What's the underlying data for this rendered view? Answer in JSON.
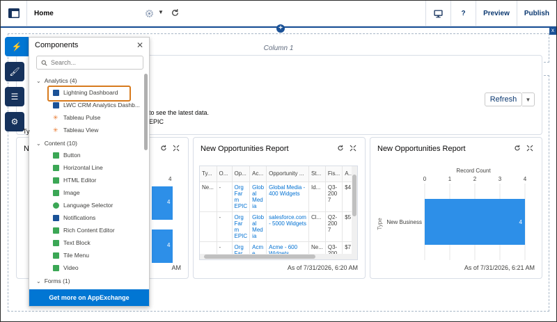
{
  "header": {
    "title": "Home",
    "preview_label": "Preview",
    "publish_label": "Publish"
  },
  "canvas": {
    "column_label": "Column 1",
    "refresh_label": "Refresh",
    "partial_text_1": "to see the latest data.",
    "partial_text_2": "EPIC",
    "partial_letter_1": "Ne",
    "partial_letter_2": "Ty"
  },
  "cards": [
    {
      "title": "New Opportunities Report",
      "footer": "As of 7/31/2026, 6:20 AM",
      "headers": [
        "Ty...",
        "O...",
        "Op...",
        "Ac...",
        "Opportunity ...",
        "St...",
        "Fis...",
        "A..."
      ],
      "rows": [
        [
          "Ne...",
          "-",
          "Org Far m EPIC",
          "Glob al Med ia",
          "Global Media - 400 Widgets",
          "Id...",
          "Q3- 200 7",
          "$4"
        ],
        [
          "",
          "-",
          "Org Far m EPIC",
          "Glob al Med ia",
          "salesforce.com - 5000 Widgets",
          "Cl...",
          "Q2- 200 7",
          "$5"
        ],
        [
          "",
          "-",
          "Org Far",
          "Acm e",
          "Acme - 600 Widgets",
          "Ne...",
          "Q3- 200",
          "$7"
        ]
      ]
    },
    {
      "title": "New Opportunities Report",
      "footer": "As of 7/31/2026, 6:21 AM",
      "chart_data": {
        "type": "bar",
        "orientation": "horizontal",
        "title": "Record Count",
        "ylabel": "Type",
        "categories": [
          "New Business"
        ],
        "values": [
          4
        ],
        "xlim": [
          0,
          4
        ],
        "ticks": [
          "0",
          "1",
          "2",
          "3",
          "4"
        ]
      }
    },
    {
      "footer": "AM",
      "left_ticks": [
        "4"
      ],
      "left_values": [
        "4",
        "4"
      ]
    }
  ],
  "panel": {
    "title": "Components",
    "search_placeholder": "Search...",
    "footer": "Get more on AppExchange",
    "groups": [
      {
        "label": "Analytics (4)",
        "items": [
          {
            "label": "Lightning Dashboard",
            "icon": "dashboard-icon",
            "color": "#1b5297"
          },
          {
            "label": "LWC CRM Analytics Dashb...",
            "icon": "dashboard-icon",
            "color": "#1b5297"
          },
          {
            "label": "Tableau Pulse",
            "icon": "tableau-icon",
            "color": "#e8762b"
          },
          {
            "label": "Tableau View",
            "icon": "tableau-icon",
            "color": "#e8762b"
          }
        ]
      },
      {
        "label": "Content (10)",
        "items": [
          {
            "label": "Button",
            "icon": "button-icon",
            "color": "#3ba755"
          },
          {
            "label": "Horizontal Line",
            "icon": "line-icon",
            "color": "#3ba755"
          },
          {
            "label": "HTML Editor",
            "icon": "html-icon",
            "color": "#3ba755"
          },
          {
            "label": "Image",
            "icon": "image-icon",
            "color": "#3ba755"
          },
          {
            "label": "Language Selector",
            "icon": "language-icon",
            "color": "#3ba755"
          },
          {
            "label": "Notifications",
            "icon": "notification-icon",
            "color": "#1b5297"
          },
          {
            "label": "Rich Content Editor",
            "icon": "rich-text-icon",
            "color": "#3ba755"
          },
          {
            "label": "Text Block",
            "icon": "text-block-icon",
            "color": "#3ba755"
          },
          {
            "label": "Tile Menu",
            "icon": "tile-menu-icon",
            "color": "#3ba755"
          },
          {
            "label": "Video",
            "icon": "video-icon",
            "color": "#3ba755"
          }
        ]
      },
      {
        "label": "Forms (1)",
        "items": []
      }
    ]
  },
  "colors": {
    "brand": "#0176d3",
    "navy": "#16325c",
    "bar": "#2d8fe8",
    "highlight": "#d77a1d"
  }
}
